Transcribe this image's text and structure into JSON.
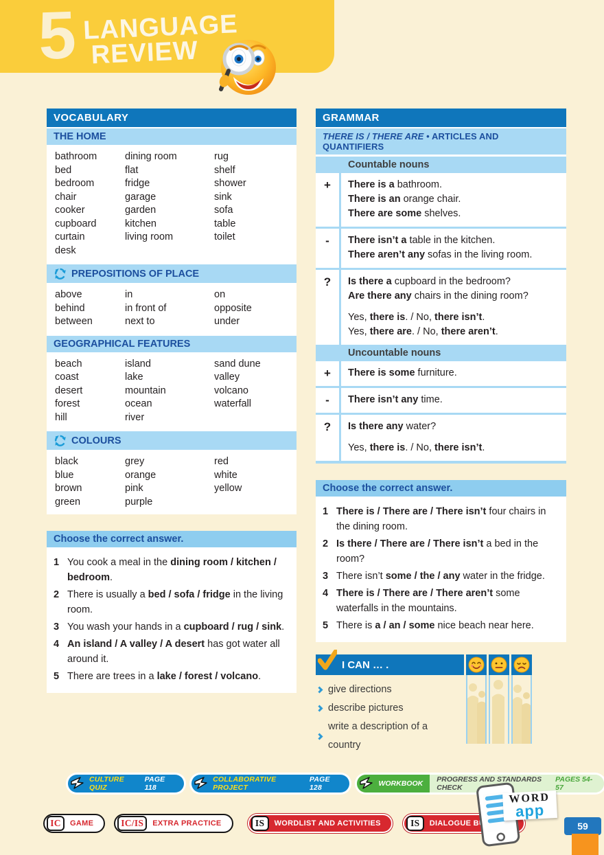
{
  "header": {
    "unit": "5",
    "line1": "LANGUAGE",
    "line2": "REVIEW"
  },
  "colors": {
    "accent_blue": "#0F76BB",
    "band_blue": "#A8D9F4",
    "dark_blue_text": "#1C4F9E",
    "banner_blue": "#1186CB",
    "banner_yellow_text": "#FFDE17",
    "green": "#4CAF3E",
    "light_green": "#DFF2D1",
    "red": "#D7282F",
    "header_yellow": "#FACD3B",
    "orange": "#F7941E",
    "cream": "#FAF1D6"
  },
  "icons": {
    "mascot": "magnifier-emoji",
    "section_recycle": "recycle-icon",
    "ican_check": "check-icon",
    "ican_moods": [
      "happy-face",
      "neutral-face",
      "sad-face"
    ],
    "banner_arrow": "arrow-icon",
    "word_app": "phone-icon"
  },
  "vocabulary": {
    "header": "VOCABULARY",
    "sections": [
      {
        "title": "THE HOME",
        "recycle": false,
        "columns": [
          [
            "bathroom",
            "bed",
            "bedroom",
            "chair",
            "cooker",
            "cupboard",
            "curtain",
            "desk"
          ],
          [
            "dining room",
            "flat",
            "fridge",
            "garage",
            "garden",
            "kitchen",
            "living room"
          ],
          [
            "rug",
            "shelf",
            "shower",
            "sink",
            "sofa",
            "table",
            "toilet"
          ]
        ]
      },
      {
        "title": "PREPOSITIONS OF PLACE",
        "recycle": true,
        "columns": [
          [
            "above",
            "behind",
            "between"
          ],
          [
            "in",
            "in front of",
            "next to"
          ],
          [
            "on",
            "opposite",
            "under"
          ]
        ]
      },
      {
        "title": "GEOGRAPHICAL FEATURES",
        "recycle": false,
        "columns": [
          [
            "beach",
            "coast",
            "desert",
            "forest",
            "hill"
          ],
          [
            "island",
            "lake",
            "mountain",
            "ocean",
            "river"
          ],
          [
            "sand dune",
            "valley",
            "volcano",
            "waterfall"
          ]
        ]
      },
      {
        "title": "COLOURS",
        "recycle": true,
        "columns": [
          [
            "black",
            "blue",
            "brown",
            "green"
          ],
          [
            "grey",
            "orange",
            "pink",
            "purple"
          ],
          [
            "red",
            "white",
            "yellow"
          ]
        ]
      }
    ]
  },
  "left_exercise": {
    "title": "Choose the correct answer.",
    "items": [
      {
        "num": "1",
        "segs": [
          [
            "You cook a meal in the ",
            0
          ],
          [
            "dining room / kitchen / bedroom",
            1
          ],
          [
            ".",
            0
          ]
        ]
      },
      {
        "num": "2",
        "segs": [
          [
            "There is usually a ",
            0
          ],
          [
            "bed / sofa / fridge",
            1
          ],
          [
            " in the living room.",
            0
          ]
        ]
      },
      {
        "num": "3",
        "segs": [
          [
            "You wash your hands in a ",
            0
          ],
          [
            "cupboard / rug / sink",
            1
          ],
          [
            ".",
            0
          ]
        ]
      },
      {
        "num": "4",
        "segs": [
          [
            "An island / A valley / A desert",
            1
          ],
          [
            " has got water all around it.",
            0
          ]
        ]
      },
      {
        "num": "5",
        "segs": [
          [
            "There are trees in a ",
            0
          ],
          [
            "lake / forest / volcano",
            1
          ],
          [
            ".",
            0
          ]
        ]
      }
    ]
  },
  "grammar": {
    "header": "GRAMMAR",
    "subband_segs": [
      [
        "THERE IS / THERE ARE",
        2
      ],
      [
        " • ARTICLES AND QUANTIFIERS",
        0
      ]
    ],
    "countable": {
      "title": "Countable nouns",
      "rows": [
        {
          "sign": "+",
          "lines": [
            {
              "segs": [
                [
                  "There is a ",
                  1
                ],
                [
                  "bathroom.",
                  0
                ]
              ]
            },
            {
              "segs": [
                [
                  "There is an ",
                  1
                ],
                [
                  "orange chair.",
                  0
                ]
              ]
            },
            {
              "segs": [
                [
                  "There are some ",
                  1
                ],
                [
                  "shelves.",
                  0
                ]
              ]
            }
          ]
        },
        {
          "sign": "-",
          "lines": [
            {
              "segs": [
                [
                  "There isn’t a ",
                  1
                ],
                [
                  "table in the kitchen.",
                  0
                ]
              ]
            },
            {
              "segs": [
                [
                  "There aren’t any ",
                  1
                ],
                [
                  "sofas in the living room.",
                  0
                ]
              ]
            }
          ]
        },
        {
          "sign": "?",
          "lines": [
            {
              "segs": [
                [
                  "Is there a ",
                  1
                ],
                [
                  "cupboard in the bedroom?",
                  0
                ]
              ]
            },
            {
              "segs": [
                [
                  "Are there any ",
                  1
                ],
                [
                  "chairs in the dining room?",
                  0
                ]
              ]
            },
            {
              "gap": 1,
              "segs": [
                [
                  "Yes, ",
                  0
                ],
                [
                  "there is",
                  1
                ],
                [
                  ". / No, ",
                  0
                ],
                [
                  "there isn’t",
                  1
                ],
                [
                  ".",
                  0
                ]
              ]
            },
            {
              "segs": [
                [
                  "Yes, ",
                  0
                ],
                [
                  "there are",
                  1
                ],
                [
                  ". / No, ",
                  0
                ],
                [
                  "there aren’t",
                  1
                ],
                [
                  ".",
                  0
                ]
              ]
            }
          ]
        }
      ]
    },
    "uncountable": {
      "title": "Uncountable nouns",
      "rows": [
        {
          "sign": "+",
          "lines": [
            {
              "segs": [
                [
                  "There is some ",
                  1
                ],
                [
                  "furniture.",
                  0
                ]
              ]
            }
          ]
        },
        {
          "sign": "-",
          "lines": [
            {
              "segs": [
                [
                  "There isn’t any ",
                  1
                ],
                [
                  "time.",
                  0
                ]
              ]
            }
          ]
        },
        {
          "sign": "?",
          "lines": [
            {
              "segs": [
                [
                  "Is there any ",
                  1
                ],
                [
                  "water?",
                  0
                ]
              ]
            },
            {
              "gap": 1,
              "segs": [
                [
                  "Yes, ",
                  0
                ],
                [
                  "there is",
                  1
                ],
                [
                  ". / No, ",
                  0
                ],
                [
                  "there isn’t",
                  1
                ],
                [
                  ".",
                  0
                ]
              ]
            }
          ]
        }
      ]
    }
  },
  "right_exercise": {
    "title": "Choose the correct answer.",
    "items": [
      {
        "num": "1",
        "segs": [
          [
            "There is / There are / There isn’t",
            1
          ],
          [
            " four chairs in the dining room.",
            0
          ]
        ]
      },
      {
        "num": "2",
        "segs": [
          [
            "Is there / There are / There isn’t",
            1
          ],
          [
            " a bed in the room?",
            0
          ]
        ]
      },
      {
        "num": "3",
        "segs": [
          [
            "There isn’t ",
            0
          ],
          [
            "some / the / any",
            1
          ],
          [
            " water in the fridge.",
            0
          ]
        ]
      },
      {
        "num": "4",
        "segs": [
          [
            "There is / There are / There aren’t",
            1
          ],
          [
            " some waterfalls in the mountains.",
            0
          ]
        ]
      },
      {
        "num": "5",
        "segs": [
          [
            "There is ",
            0
          ],
          [
            "a / an / some",
            1
          ],
          [
            " nice beach near here.",
            0
          ]
        ]
      }
    ]
  },
  "ican": {
    "title": "I CAN … .",
    "items": [
      "give directions",
      "describe pictures",
      "write a description of a country"
    ],
    "moods": [
      "happy",
      "neutral",
      "sad"
    ]
  },
  "banners": [
    {
      "style": "blue",
      "label": "CULTURE QUIZ",
      "page": "PAGE 118"
    },
    {
      "style": "blue",
      "label": "COLLABORATIVE PROJECT",
      "page": "PAGE 128"
    },
    {
      "style": "green",
      "label": "WORKBOOK",
      "extra": "PROGRESS AND STANDARDS CHECK",
      "pages": "PAGES 54-57"
    }
  ],
  "buttons": [
    {
      "badge": "IC",
      "label": "GAME",
      "style": "outline"
    },
    {
      "badge": "IC/IS",
      "label": "EXTRA PRACTICE",
      "style": "outline"
    },
    {
      "badge": "IS",
      "label": "WORDLIST AND ACTIVITIES",
      "style": "red"
    },
    {
      "badge": "IS",
      "label": "DIALOGUE BUILDERS",
      "style": "red"
    }
  ],
  "word_app": {
    "top": "WORD",
    "bottom": "app"
  },
  "page_number": "59"
}
